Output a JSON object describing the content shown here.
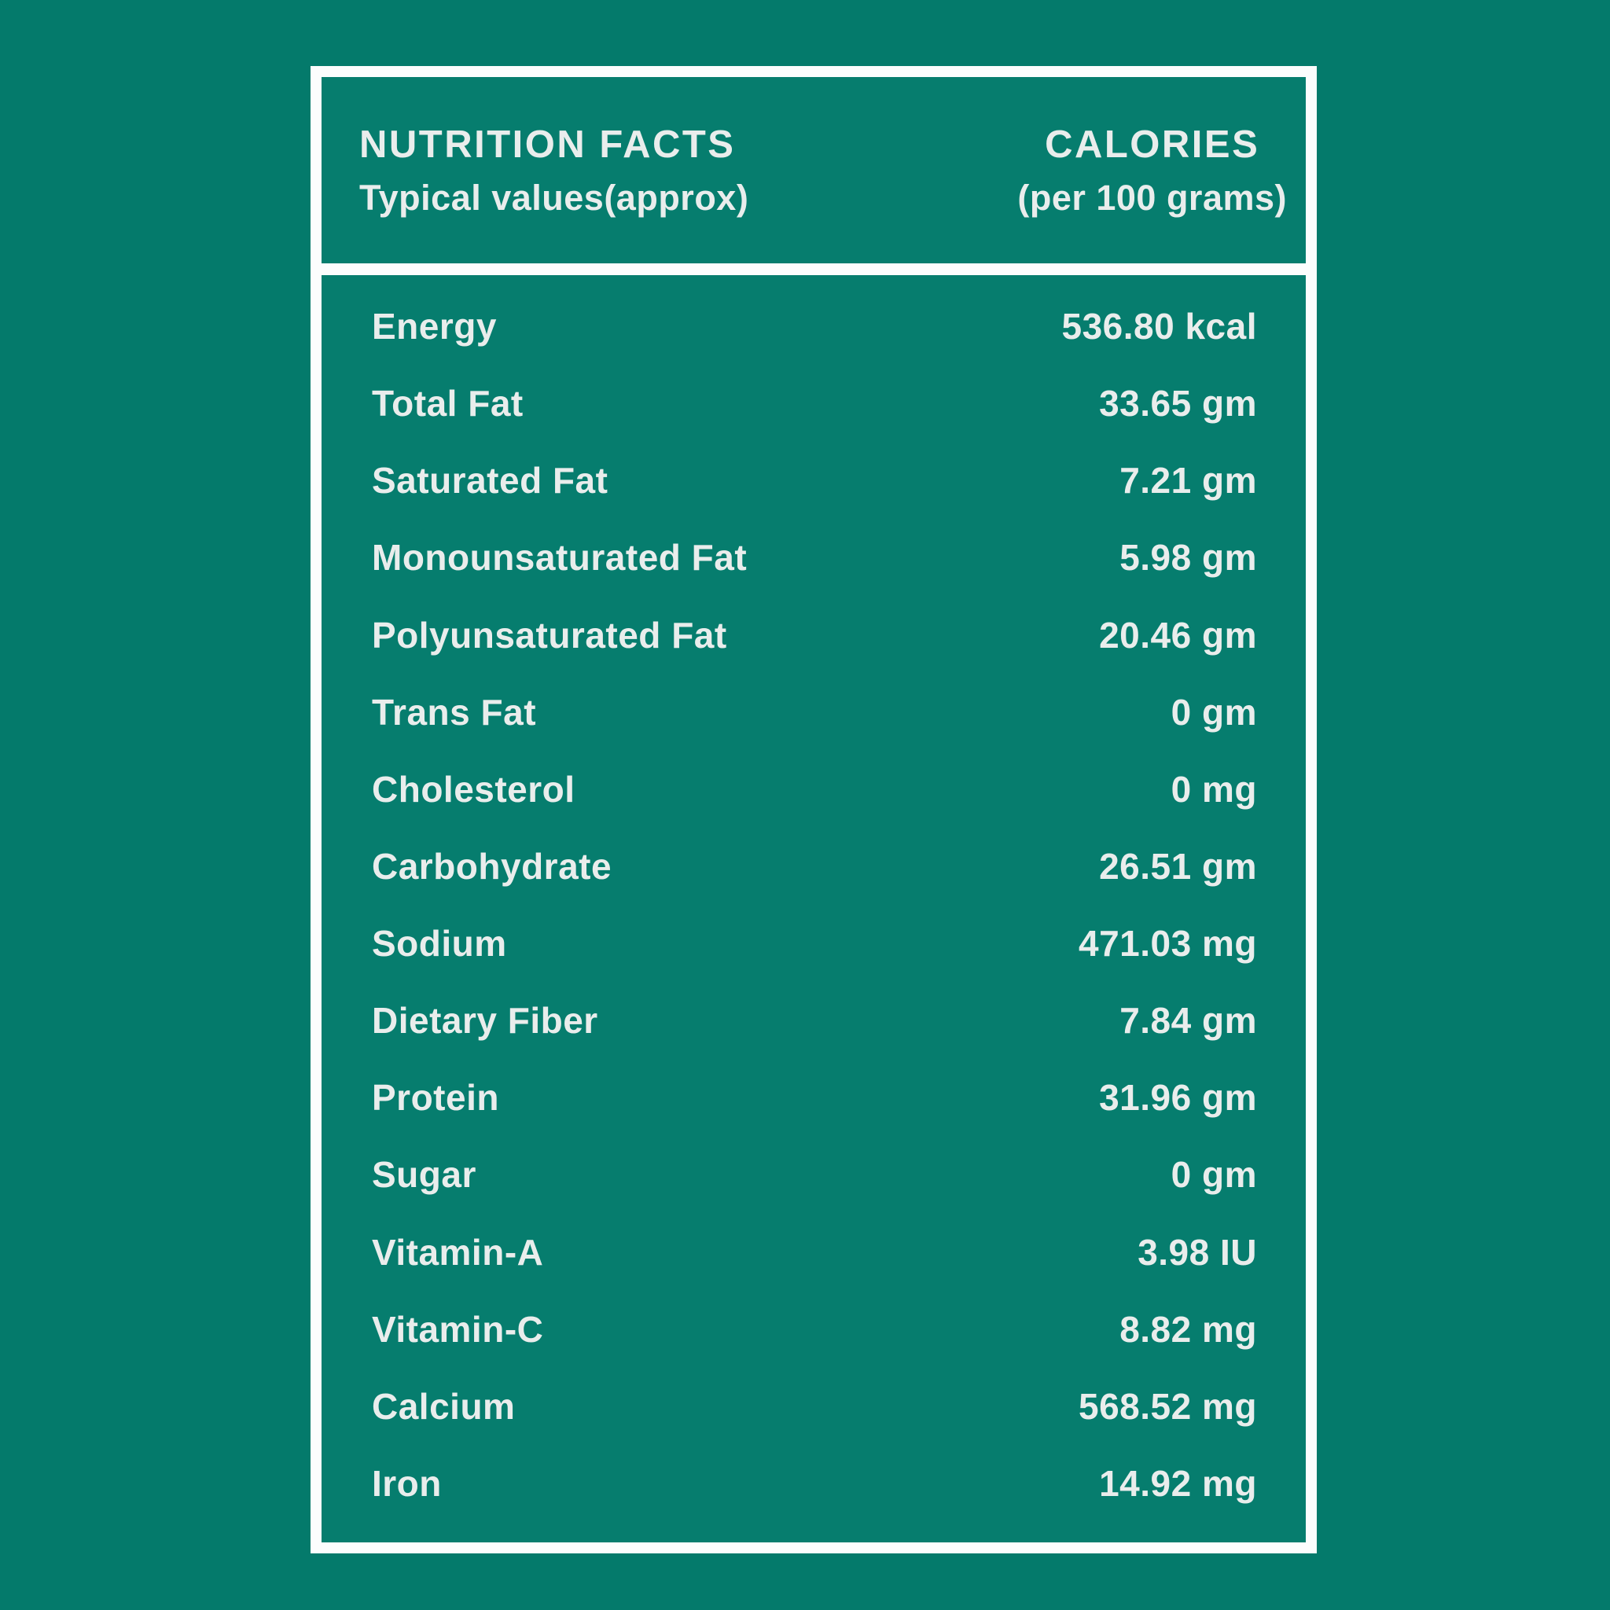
{
  "theme": {
    "page_background": "#047a6b",
    "panel_fill": "#067d6e",
    "frame_color": "#fcfdfd",
    "text_color": "#e9edec"
  },
  "header": {
    "title": "NUTRITION FACTS",
    "subtitle": "Typical values(approx)",
    "calories_title": "CALORIES",
    "calories_subtitle": "(per 100 grams)"
  },
  "table": {
    "rows": [
      {
        "label": "Energy",
        "value": "536.80 kcal"
      },
      {
        "label": "Total Fat",
        "value": "33.65 gm"
      },
      {
        "label": "Saturated Fat",
        "value": "7.21 gm"
      },
      {
        "label": "Monounsaturated Fat",
        "value": "5.98 gm"
      },
      {
        "label": "Polyunsaturated Fat",
        "value": "20.46 gm"
      },
      {
        "label": "Trans Fat",
        "value": "0 gm"
      },
      {
        "label": "Cholesterol",
        "value": "0 mg"
      },
      {
        "label": "Carbohydrate",
        "value": "26.51 gm"
      },
      {
        "label": "Sodium",
        "value": "471.03 mg"
      },
      {
        "label": "Dietary Fiber",
        "value": "7.84 gm"
      },
      {
        "label": "Protein",
        "value": "31.96 gm"
      },
      {
        "label": "Sugar",
        "value": "0 gm"
      },
      {
        "label": "Vitamin-A",
        "value": "3.98 IU"
      },
      {
        "label": "Vitamin-C",
        "value": "8.82 mg"
      },
      {
        "label": "Calcium",
        "value": "568.52 mg"
      },
      {
        "label": "Iron",
        "value": "14.92 mg"
      }
    ]
  }
}
